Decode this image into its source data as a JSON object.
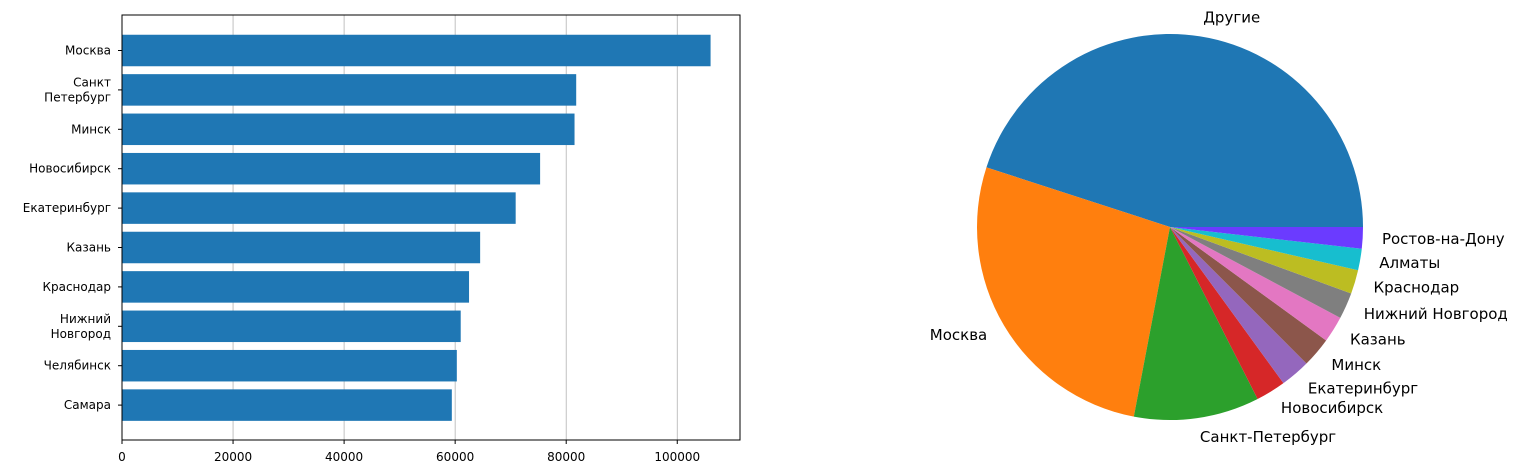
{
  "chart_data": [
    {
      "type": "bar",
      "orientation": "horizontal",
      "categories": [
        "Москва",
        "Санкт\nПетербург",
        "Минск",
        "Новосибирск",
        "Екатеринбург",
        "Казань",
        "Краснодар",
        "Нижний\nНовгород",
        "Челябинск",
        "Самара"
      ],
      "values": [
        106000,
        81800,
        81500,
        75300,
        70900,
        64500,
        62500,
        61000,
        60300,
        59400
      ],
      "xlim": [
        0,
        111300
      ],
      "xticks": [
        0,
        20000,
        40000,
        60000,
        80000,
        100000
      ],
      "grid": "x",
      "color": "#1f77b4",
      "title": "",
      "xlabel": "",
      "ylabel": ""
    },
    {
      "type": "pie",
      "labels": [
        "Другие",
        "Москва",
        "Санкт-Петербург",
        "Новосибирск",
        "Екатеринбург",
        "Минск",
        "Казань",
        "Нижний Новгород",
        "Краснодар",
        "Алматы",
        "Ростов-на-Дону"
      ],
      "values": [
        45.0,
        27.0,
        10.5,
        2.5,
        2.5,
        2.5,
        2.2,
        2.2,
        2.0,
        1.8,
        1.8
      ],
      "colors": [
        "#1f77b4",
        "#ff7f0e",
        "#2ca02c",
        "#d62728",
        "#9467bd",
        "#8c564b",
        "#e377c2",
        "#7f7f7f",
        "#bcbd22",
        "#17becf",
        "#6b3bff"
      ],
      "title": ""
    }
  ]
}
